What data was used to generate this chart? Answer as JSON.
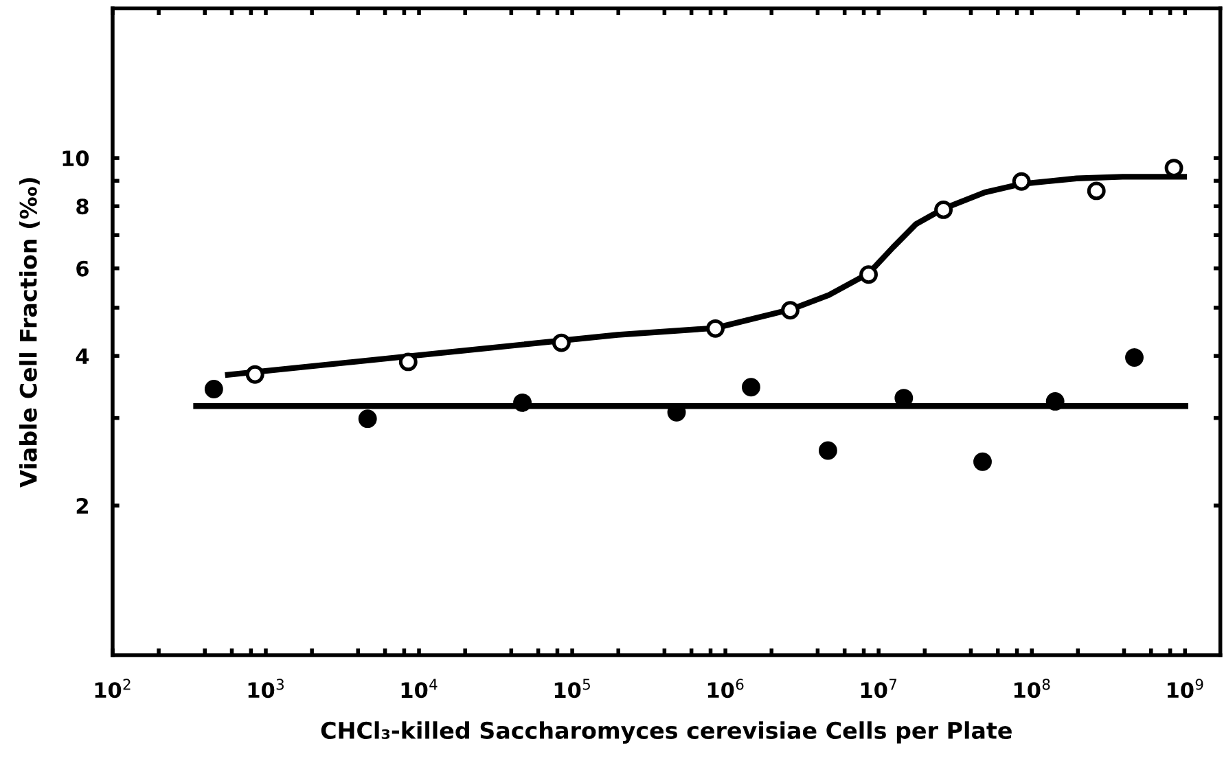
{
  "chart_data": {
    "type": "scatter",
    "xlabel": "CHCl₃-killed Saccharomyces cerevisiae Cells per Plate",
    "ylabel": "Viable Cell Fraction (‰)",
    "log": "xy",
    "grid": false,
    "xlim": [
      100,
      1700000000
    ],
    "ylim": [
      1,
      20
    ],
    "xticks": [
      {
        "value": 100,
        "label": "10$^{2}$"
      },
      {
        "value": 200,
        "label": null
      },
      {
        "value": 400,
        "label": null
      },
      {
        "value": 600,
        "label": null
      },
      {
        "value": 800,
        "label": null
      },
      {
        "value": 1000,
        "label": "10$^{3}$"
      },
      {
        "value": 2000,
        "label": null
      },
      {
        "value": 4000,
        "label": null
      },
      {
        "value": 6000,
        "label": null
      },
      {
        "value": 8000,
        "label": null
      },
      {
        "value": 10000,
        "label": "10$^{4}$"
      },
      {
        "value": 20000,
        "label": null
      },
      {
        "value": 40000,
        "label": null
      },
      {
        "value": 60000,
        "label": null
      },
      {
        "value": 80000,
        "label": null
      },
      {
        "value": 100000,
        "label": "10$^{5}$"
      },
      {
        "value": 200000,
        "label": null
      },
      {
        "value": 400000,
        "label": null
      },
      {
        "value": 600000,
        "label": null
      },
      {
        "value": 800000,
        "label": null
      },
      {
        "value": 1000000,
        "label": "10$^{6}$"
      },
      {
        "value": 2000000,
        "label": null
      },
      {
        "value": 4000000,
        "label": null
      },
      {
        "value": 6000000,
        "label": null
      },
      {
        "value": 8000000,
        "label": null
      },
      {
        "value": 10000000,
        "label": "10$^{7}$"
      },
      {
        "value": 20000000,
        "label": null
      },
      {
        "value": 40000000,
        "label": null
      },
      {
        "value": 60000000,
        "label": null
      },
      {
        "value": 80000000,
        "label": null
      },
      {
        "value": 100000000,
        "label": "10$^{8}$"
      },
      {
        "value": 200000000,
        "label": null
      },
      {
        "value": 400000000,
        "label": null
      },
      {
        "value": 600000000,
        "label": null
      },
      {
        "value": 800000000,
        "label": null
      },
      {
        "value": 1000000000,
        "label": "10$^{9}$"
      }
    ],
    "yticks": [
      2,
      {
        "value": 3,
        "label": null
      },
      4,
      {
        "value": 5,
        "label": null
      },
      6,
      {
        "value": 7,
        "label": null
      },
      8,
      {
        "value": 9,
        "label": null
      },
      10
    ],
    "series": [
      {
        "type": "line",
        "color": "#000000",
        "marker": "none",
        "line_style": "solid",
        "x": [
          542,
          198000,
          860000,
          2670000,
          4730000,
          8600000,
          12400000,
          17500000,
          26500000,
          49300000,
          85600000,
          196000000,
          391000000,
          1030000000
        ],
        "values": [
          3.66,
          4.41,
          4.55,
          4.96,
          5.3,
          5.86,
          6.61,
          7.36,
          7.91,
          8.53,
          8.87,
          9.1,
          9.17,
          9.17
        ]
      },
      {
        "type": "line",
        "color": "#000000",
        "marker": "none",
        "line_style": "solid",
        "x": [
          336,
          1050000000
        ],
        "values": [
          3.17,
          3.17
        ]
      },
      {
        "color": "#ffffff",
        "marker": "circle",
        "x": [
          850,
          8500,
          85000,
          860000,
          2650000,
          8600000,
          26500000,
          85600000,
          264000000,
          846000000
        ],
        "values": [
          3.67,
          3.89,
          4.25,
          4.54,
          4.94,
          5.83,
          7.87,
          8.97,
          8.59,
          9.55
        ]
      },
      {
        "color": "#000000",
        "marker": "circle",
        "x": [
          458,
          4620,
          47300,
          480000,
          1470000,
          4670000,
          14600000,
          47700000,
          142000000,
          467000000
        ],
        "values": [
          3.43,
          2.99,
          3.22,
          3.08,
          3.46,
          2.58,
          3.29,
          2.45,
          3.24,
          3.97
        ]
      }
    ]
  }
}
